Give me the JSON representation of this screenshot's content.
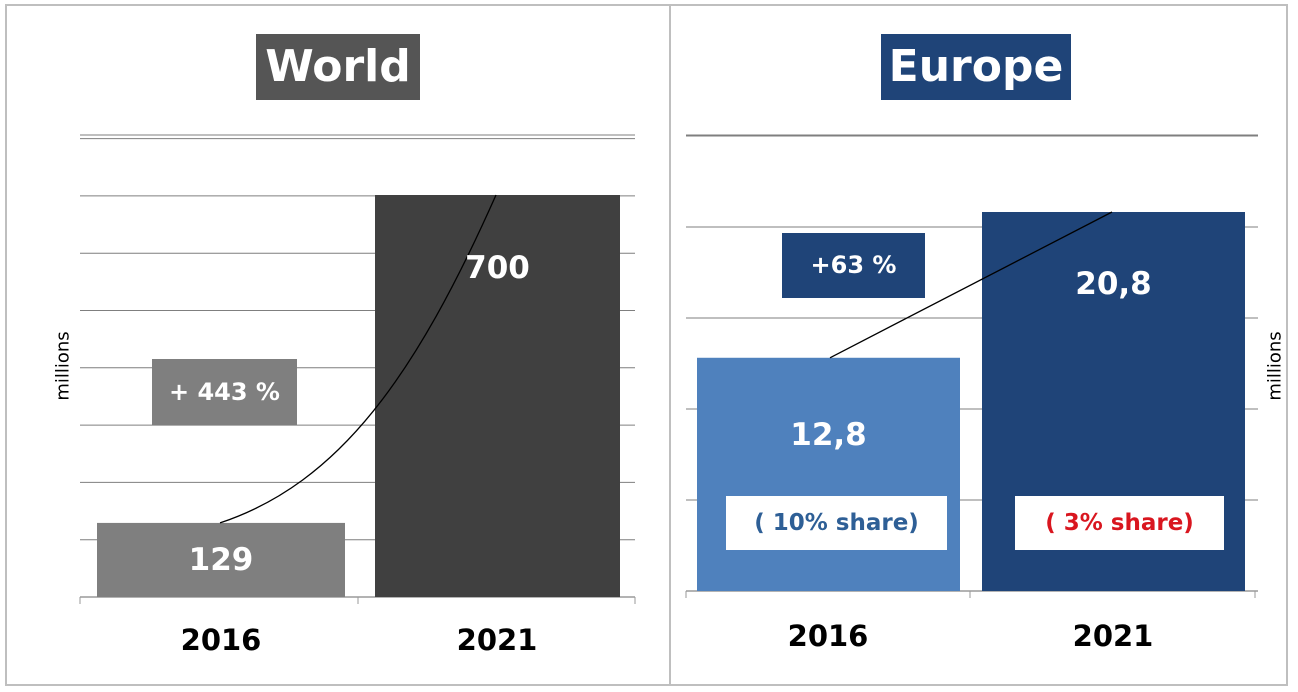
{
  "chart_data": [
    {
      "type": "bar",
      "title": "World",
      "ylabel": "millions",
      "categories": [
        "2016",
        "2021"
      ],
      "values": [
        129,
        700
      ],
      "value_labels": [
        "129",
        "700"
      ],
      "annotation": "+ 443 %",
      "trend_line": true,
      "grid": true,
      "colors": {
        "bars": [
          "#7f7f7f",
          "#404040"
        ],
        "title_bg": "#555555",
        "annotation_bg": "#7f7f7f"
      }
    },
    {
      "type": "bar",
      "title": "Europe",
      "ylabel": "millions",
      "categories": [
        "2016",
        "2021"
      ],
      "values": [
        12.8,
        20.8
      ],
      "value_labels": [
        "12,8",
        "20,8"
      ],
      "annotation": "+63 %",
      "share_labels": [
        "( 10% share)",
        "( 3% share)"
      ],
      "trend_line": true,
      "grid": true,
      "colors": {
        "bars": [
          "#4f81bd",
          "#1f4478"
        ],
        "title_bg": "#1f4478",
        "annotation_bg": "#1f4478",
        "share_2016": "#2e5f96",
        "share_2021": "#d9161f"
      }
    }
  ]
}
